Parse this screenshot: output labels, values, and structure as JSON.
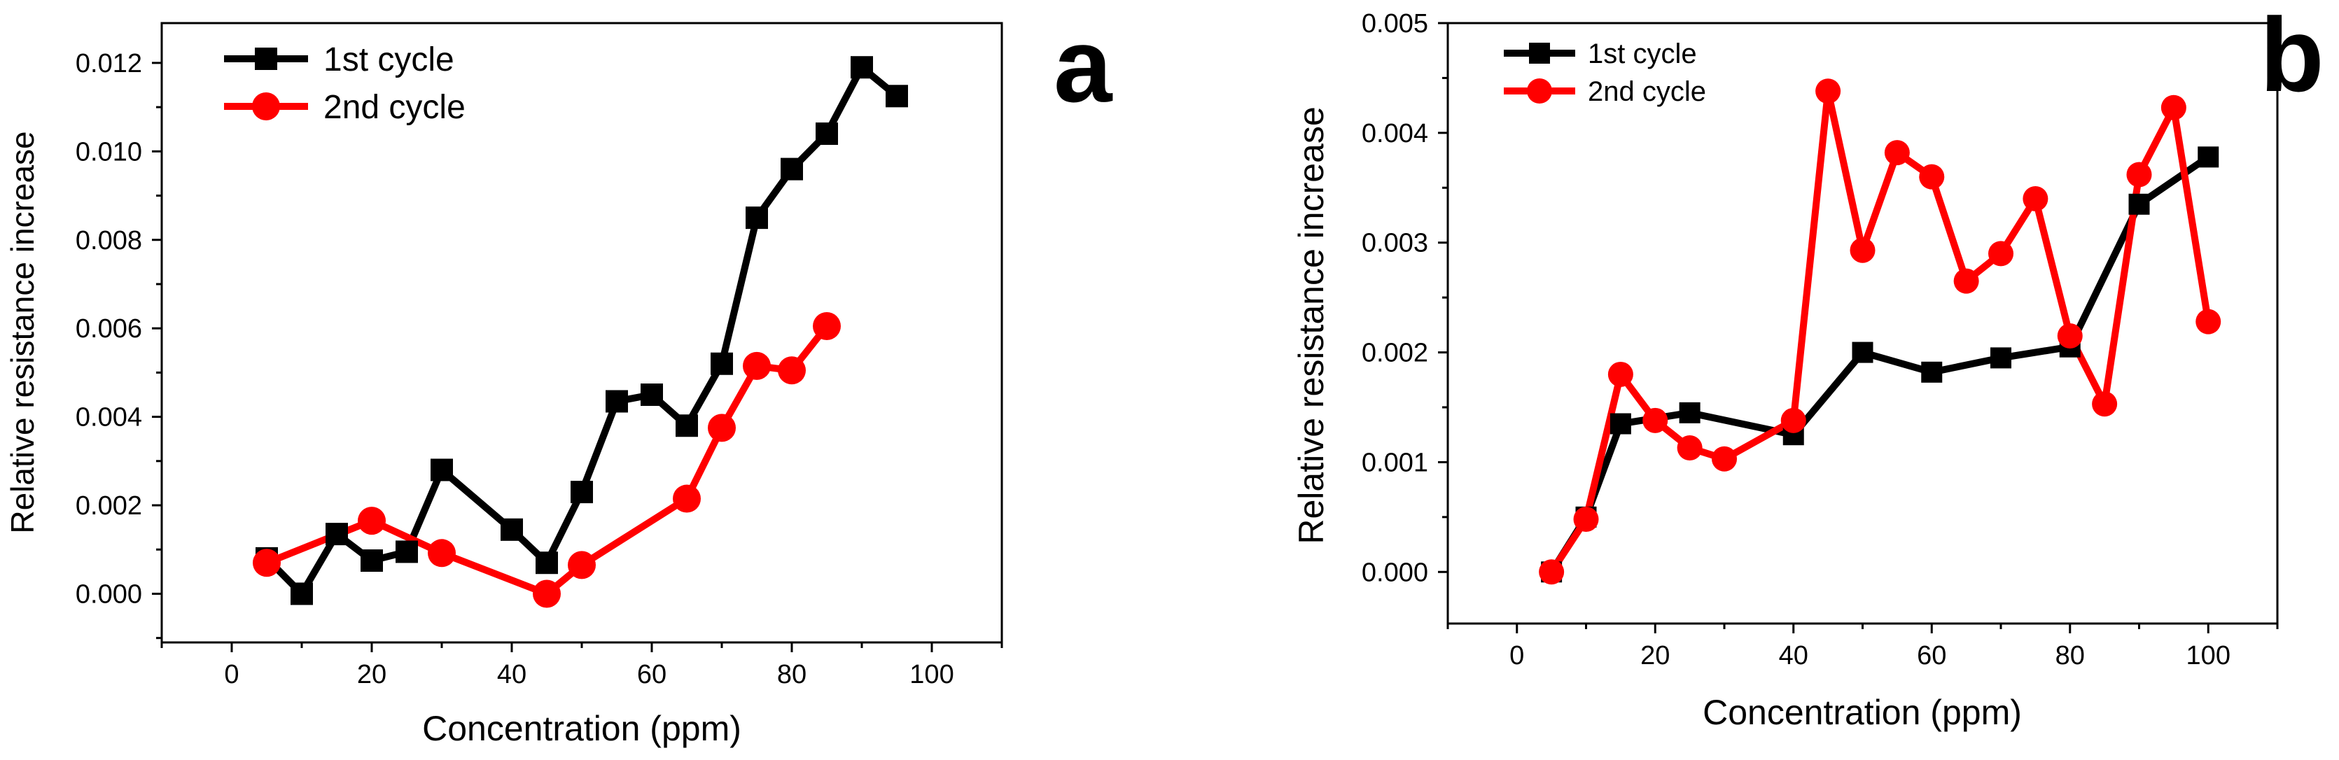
{
  "chart_data": [
    {
      "type": "line",
      "panel_label": "a",
      "xlabel": "Concentration (ppm)",
      "ylabel": "Relative resistance increase",
      "xlim": [
        -10,
        110
      ],
      "ylim": [
        -0.0011,
        0.0129
      ],
      "xticks": [
        0,
        20,
        40,
        60,
        80,
        100
      ],
      "xtick_labels": [
        "0",
        "20",
        "40",
        "60",
        "80",
        "100"
      ],
      "yticks": [
        0,
        0.002,
        0.004,
        0.006,
        0.008,
        0.01,
        0.012
      ],
      "ytick_labels": [
        "0.000",
        "0.002",
        "0.004",
        "0.006",
        "0.008",
        "0.010",
        "0.012"
      ],
      "legend_position": "top-left",
      "series": [
        {
          "name": "1st cycle",
          "color": "#000000",
          "marker": "square",
          "x": [
            5,
            10,
            15,
            20,
            25,
            30,
            40,
            45,
            50,
            55,
            60,
            65,
            70,
            75,
            80,
            85,
            90,
            95
          ],
          "y": [
            0.0008,
            0.0,
            0.00135,
            0.00075,
            0.00095,
            0.0028,
            0.00145,
            0.0007,
            0.0023,
            0.00435,
            0.0045,
            0.0038,
            0.0052,
            0.0085,
            0.0096,
            0.0104,
            0.0119,
            0.01125
          ]
        },
        {
          "name": "2nd cycle",
          "color": "#ff0000",
          "marker": "circle",
          "x": [
            5,
            20,
            30,
            45,
            50,
            65,
            70,
            75,
            80,
            85
          ],
          "y": [
            0.0007,
            0.00165,
            0.00092,
            0.0,
            0.00065,
            0.00215,
            0.00375,
            0.00515,
            0.00505,
            0.00605
          ]
        }
      ]
    },
    {
      "type": "line",
      "panel_label": "b",
      "xlabel": "Concentration (ppm)",
      "ylabel": "Relative resistance increase",
      "xlim": [
        -10,
        110
      ],
      "ylim": [
        -0.00047,
        0.005
      ],
      "xticks": [
        0,
        20,
        40,
        60,
        80,
        100
      ],
      "xtick_labels": [
        "0",
        "20",
        "40",
        "60",
        "80",
        "100"
      ],
      "yticks": [
        0,
        0.001,
        0.002,
        0.003,
        0.004,
        0.005
      ],
      "ytick_labels": [
        "0.000",
        "0.001",
        "0.002",
        "0.003",
        "0.004",
        "0.005"
      ],
      "legend_position": "top-left",
      "series": [
        {
          "name": "1st cycle",
          "color": "#000000",
          "marker": "square",
          "x": [
            5,
            10,
            15,
            25,
            40,
            50,
            60,
            70,
            80,
            90,
            100
          ],
          "y": [
            0.0,
            0.0005,
            0.00135,
            0.00145,
            0.00125,
            0.002,
            0.00182,
            0.00195,
            0.00205,
            0.00335,
            0.00378
          ]
        },
        {
          "name": "2nd cycle",
          "color": "#ff0000",
          "marker": "circle",
          "x": [
            5,
            10,
            15,
            20,
            25,
            30,
            40,
            45,
            50,
            55,
            60,
            65,
            70,
            75,
            80,
            85,
            90,
            95,
            100
          ],
          "y": [
            0.0,
            0.00048,
            0.0018,
            0.00138,
            0.00113,
            0.00103,
            0.00138,
            0.00438,
            0.00293,
            0.00382,
            0.0036,
            0.00265,
            0.0029,
            0.0034,
            0.00215,
            0.00153,
            0.00362,
            0.00423,
            0.00228
          ]
        }
      ]
    }
  ]
}
